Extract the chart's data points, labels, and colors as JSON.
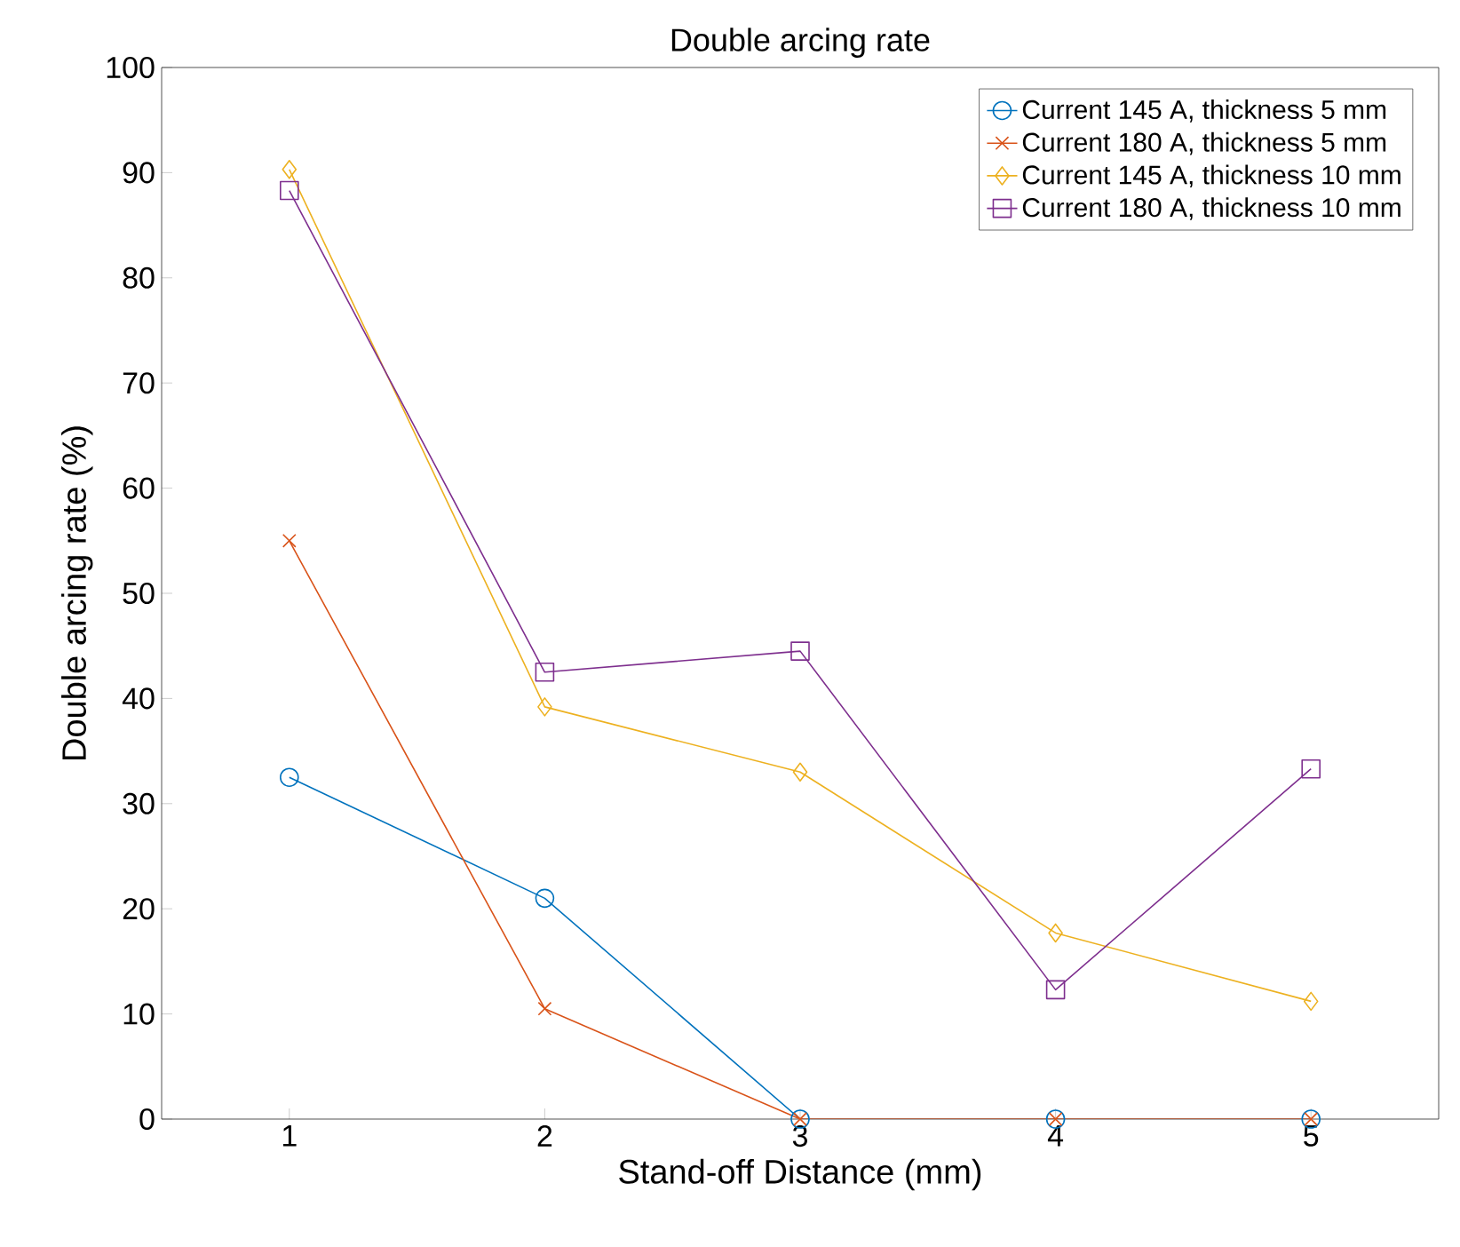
{
  "chart_data": {
    "type": "line",
    "title": "Double arcing rate",
    "xlabel": "Stand-off Distance (mm)",
    "ylabel": "Double arcing rate (%)",
    "x": [
      1,
      2,
      3,
      4,
      5
    ],
    "series": [
      {
        "name": "Current 145 A, thickness 5 mm",
        "color": "#0072bd",
        "marker": "circle",
        "values": [
          32.5,
          21,
          0,
          0,
          0
        ]
      },
      {
        "name": "Current 180 A, thickness 5 mm",
        "color": "#d95319",
        "marker": "cross",
        "values": [
          55,
          10.5,
          0,
          0,
          0
        ]
      },
      {
        "name": "Current 145 A, thickness 10 mm",
        "color": "#edb120",
        "marker": "diamond",
        "values": [
          90.3,
          39.2,
          33,
          17.7,
          11.2
        ]
      },
      {
        "name": "Current 180 A, thickness 10 mm",
        "color": "#7e2f8e",
        "marker": "square",
        "values": [
          88.3,
          42.5,
          44.5,
          12.3,
          33.3
        ]
      }
    ],
    "xlim": [
      0.5,
      5.5
    ],
    "xticks": [
      1,
      2,
      3,
      4,
      5
    ],
    "ylim": [
      0,
      100
    ],
    "yticks": [
      0,
      10,
      20,
      30,
      40,
      50,
      60,
      70,
      80,
      90,
      100
    ],
    "grid": false,
    "legend": "top right",
    "line_style": "solid"
  }
}
